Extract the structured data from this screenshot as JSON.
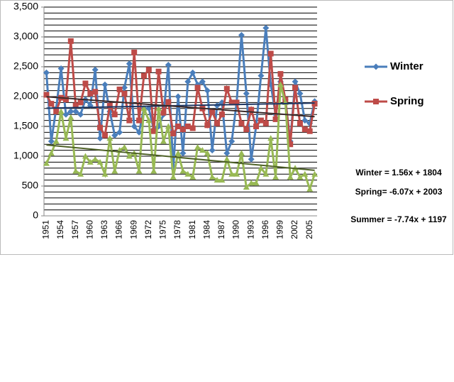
{
  "chart_data": {
    "type": "line",
    "categories": [
      "1951",
      null,
      null,
      "1954",
      null,
      null,
      "1957",
      null,
      null,
      "1960",
      null,
      null,
      "1963",
      null,
      null,
      "1966",
      null,
      null,
      "1969",
      null,
      null,
      "1972",
      null,
      null,
      "1975",
      null,
      null,
      "1978",
      null,
      null,
      "1981",
      null,
      null,
      "1984",
      null,
      null,
      "1987",
      null,
      null,
      "1990",
      null,
      null,
      "1993",
      null,
      null,
      "1996",
      null,
      null,
      "1999",
      null,
      null,
      "2002",
      null,
      null,
      "2005",
      null
    ],
    "series": [
      {
        "name": "Winter",
        "color": "#4a7ebb",
        "marker": "diamond",
        "values": [
          2400,
          1250,
          1800,
          2470,
          1700,
          1750,
          1750,
          1700,
          1950,
          1850,
          2450,
          1300,
          2200,
          1750,
          1350,
          1400,
          2150,
          2550,
          1500,
          1400,
          1800,
          1800,
          1450,
          1500,
          1700,
          2530,
          800,
          2000,
          1050,
          2250,
          2400,
          2200,
          2250,
          2100,
          1100,
          1850,
          1900,
          1050,
          1250,
          1900,
          3030,
          2050,
          950,
          1500,
          2350,
          3150,
          2200,
          1700,
          2250,
          1950,
          1250,
          2250,
          2050,
          1600,
          1550,
          1920
        ]
      },
      {
        "name": "Spring",
        "color": "#be4b48",
        "marker": "square",
        "values": [
          2030,
          1880,
          1750,
          1980,
          1950,
          2930,
          1850,
          1900,
          2220,
          2050,
          2080,
          1480,
          1350,
          1850,
          1700,
          2120,
          2050,
          1600,
          2740,
          1600,
          2350,
          2450,
          1420,
          2420,
          1730,
          1910,
          1380,
          1500,
          1450,
          1500,
          1470,
          2150,
          1800,
          1520,
          1750,
          1550,
          1700,
          2130,
          1900,
          1900,
          1550,
          1450,
          1780,
          1500,
          1600,
          1550,
          2720,
          1620,
          2380,
          1950,
          1200,
          2150,
          1550,
          1450,
          1420,
          1880
        ]
      },
      {
        "color": "#98b954",
        "marker": "triangle",
        "values": [
          880,
          1050,
          1250,
          1750,
          1300,
          1650,
          750,
          700,
          1000,
          900,
          950,
          900,
          700,
          1300,
          750,
          1100,
          1150,
          1000,
          1050,
          750,
          1800,
          1600,
          750,
          1800,
          1250,
          1500,
          650,
          1050,
          750,
          700,
          650,
          1150,
          1100,
          1050,
          650,
          600,
          600,
          950,
          700,
          700,
          1050,
          480,
          550,
          550,
          800,
          700,
          1300,
          650,
          2200,
          1900,
          650,
          800,
          650,
          700,
          450,
          700
        ]
      }
    ],
    "trendlines": [
      {
        "label": "Winter = 1.56x + 1804",
        "slope": 1.56,
        "intercept": 1804,
        "color": "#1f3864"
      },
      {
        "label": "Spring= -6.07x + 2003",
        "slope": -6.07,
        "intercept": 2003,
        "color": "#3b2a2a"
      },
      {
        "label": "Summer = -7.74x + 1197",
        "slope": -7.74,
        "intercept": 1197,
        "color": "#4f6228"
      }
    ],
    "ylim": [
      0,
      3500
    ],
    "yticks": [
      0,
      500,
      {
        "value": 1000,
        "label": "1,000"
      },
      {
        "value": 1500,
        "label": "1,500"
      },
      {
        "value": 2000,
        "label": "2,000"
      },
      {
        "value": 2500,
        "label": "2,500"
      },
      {
        "value": 3000,
        "label": "3,000"
      },
      {
        "value": 3500,
        "label": "3,500"
      }
    ],
    "grid": true,
    "minor_grid": [
      100,
      200,
      300,
      400,
      600,
      700,
      800,
      900,
      1100,
      1200,
      1300,
      1400,
      1600,
      1700,
      1800,
      1900,
      2100,
      2200,
      2300,
      2400,
      2600,
      2700,
      2800,
      2900,
      3100,
      3200,
      3300,
      3400
    ],
    "legend": "right"
  }
}
